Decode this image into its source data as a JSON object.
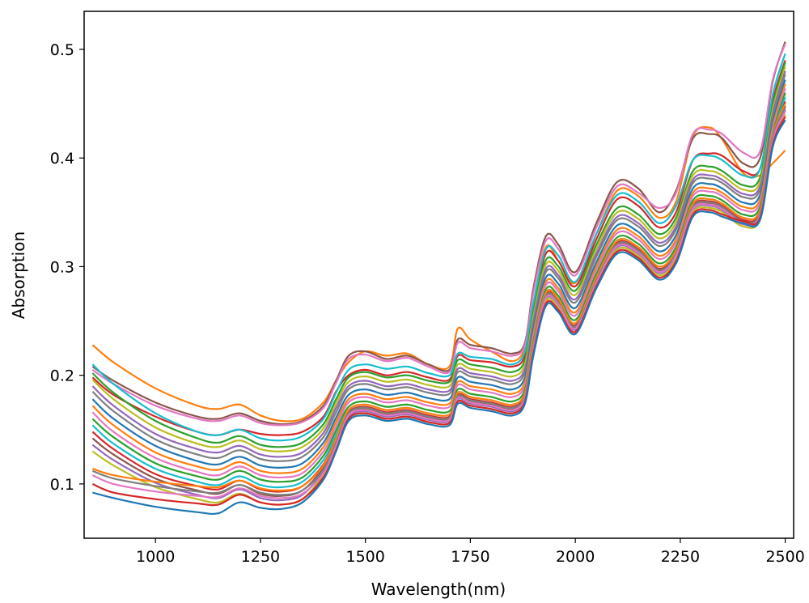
{
  "chart_data": {
    "type": "line",
    "title": "",
    "xlabel": "Wavelength(nm)",
    "ylabel": "Absorption",
    "xlim": [
      830,
      2520
    ],
    "ylim": [
      0.05,
      0.535
    ],
    "xticks": [
      {
        "value": 1000,
        "label": "1000"
      },
      {
        "value": 1250,
        "label": "1250"
      },
      {
        "value": 1500,
        "label": "1500"
      },
      {
        "value": 1750,
        "label": "1750"
      },
      {
        "value": 2000,
        "label": "2000"
      },
      {
        "value": 2250,
        "label": "2250"
      },
      {
        "value": 2500,
        "label": "2500"
      }
    ],
    "yticks": [
      {
        "value": 0.1,
        "label": "0.1"
      },
      {
        "value": 0.2,
        "label": "0.2"
      },
      {
        "value": 0.3,
        "label": "0.3"
      },
      {
        "value": 0.4,
        "label": "0.4"
      },
      {
        "value": 0.5,
        "label": "0.5"
      }
    ],
    "grid": false,
    "legend": "none",
    "x": [
      850,
      900,
      1000,
      1100,
      1150,
      1200,
      1250,
      1300,
      1350,
      1400,
      1430,
      1460,
      1500,
      1550,
      1600,
      1650,
      1700,
      1720,
      1750,
      1800,
      1850,
      1880,
      1900,
      1930,
      1960,
      2000,
      2050,
      2100,
      2150,
      2200,
      2240,
      2280,
      2320,
      2350,
      2400,
      2440,
      2470,
      2500
    ],
    "series": [
      {
        "color": "#ff7f0e",
        "values": [
          0.228,
          0.212,
          0.188,
          0.172,
          0.169,
          0.173,
          0.163,
          0.158,
          0.16,
          0.175,
          0.195,
          0.212,
          0.222,
          0.218,
          0.22,
          0.21,
          0.208,
          0.243,
          0.233,
          0.222,
          0.213,
          0.225,
          0.265,
          0.318,
          0.305,
          0.285,
          0.33,
          0.37,
          0.365,
          0.345,
          0.36,
          0.42,
          0.428,
          0.417,
          0.386,
          0.384,
          0.395,
          0.407
        ]
      },
      {
        "color": "#8c564b",
        "values": [
          0.208,
          0.195,
          0.175,
          0.162,
          0.16,
          0.165,
          0.158,
          0.155,
          0.158,
          0.172,
          0.195,
          0.218,
          0.222,
          0.215,
          0.218,
          0.21,
          0.205,
          0.233,
          0.228,
          0.225,
          0.22,
          0.23,
          0.28,
          0.328,
          0.32,
          0.295,
          0.34,
          0.378,
          0.372,
          0.35,
          0.37,
          0.418,
          0.422,
          0.418,
          0.395,
          0.4,
          0.47,
          0.507
        ]
      },
      {
        "color": "#e377c2",
        "values": [
          0.205,
          0.192,
          0.172,
          0.16,
          0.158,
          0.163,
          0.156,
          0.154,
          0.157,
          0.17,
          0.193,
          0.215,
          0.219,
          0.213,
          0.216,
          0.208,
          0.203,
          0.23,
          0.225,
          0.222,
          0.218,
          0.228,
          0.276,
          0.324,
          0.316,
          0.292,
          0.336,
          0.374,
          0.368,
          0.354,
          0.368,
          0.422,
          0.426,
          0.422,
          0.405,
          0.406,
          0.472,
          0.505
        ]
      },
      {
        "color": "#d62728",
        "values": [
          0.198,
          0.182,
          0.162,
          0.148,
          0.145,
          0.15,
          0.146,
          0.145,
          0.148,
          0.162,
          0.185,
          0.2,
          0.205,
          0.2,
          0.203,
          0.198,
          0.196,
          0.218,
          0.214,
          0.212,
          0.208,
          0.218,
          0.262,
          0.312,
          0.305,
          0.282,
          0.325,
          0.362,
          0.356,
          0.336,
          0.35,
          0.398,
          0.404,
          0.402,
          0.388,
          0.39,
          0.452,
          0.49
        ]
      },
      {
        "color": "#17becf",
        "values": [
          0.21,
          0.192,
          0.165,
          0.148,
          0.145,
          0.15,
          0.142,
          0.14,
          0.144,
          0.16,
          0.184,
          0.205,
          0.21,
          0.206,
          0.208,
          0.202,
          0.2,
          0.22,
          0.217,
          0.215,
          0.21,
          0.222,
          0.266,
          0.316,
          0.31,
          0.286,
          0.33,
          0.366,
          0.36,
          0.34,
          0.356,
          0.398,
          0.402,
          0.398,
          0.384,
          0.39,
          0.458,
          0.496
        ]
      },
      {
        "color": "#2ca02c",
        "values": [
          0.202,
          0.184,
          0.158,
          0.142,
          0.138,
          0.144,
          0.136,
          0.134,
          0.138,
          0.155,
          0.178,
          0.198,
          0.203,
          0.198,
          0.2,
          0.195,
          0.194,
          0.214,
          0.21,
          0.207,
          0.203,
          0.214,
          0.258,
          0.306,
          0.3,
          0.278,
          0.32,
          0.354,
          0.348,
          0.33,
          0.345,
          0.388,
          0.392,
          0.388,
          0.375,
          0.382,
          0.448,
          0.488
        ]
      },
      {
        "color": "#bcbd22",
        "values": [
          0.196,
          0.178,
          0.152,
          0.137,
          0.134,
          0.14,
          0.132,
          0.13,
          0.134,
          0.151,
          0.174,
          0.194,
          0.199,
          0.194,
          0.196,
          0.191,
          0.19,
          0.21,
          0.206,
          0.203,
          0.199,
          0.21,
          0.254,
          0.302,
          0.296,
          0.274,
          0.316,
          0.35,
          0.344,
          0.326,
          0.341,
          0.384,
          0.388,
          0.384,
          0.371,
          0.378,
          0.444,
          0.484
        ]
      },
      {
        "color": "#9467bd",
        "values": [
          0.19,
          0.172,
          0.146,
          0.132,
          0.129,
          0.135,
          0.127,
          0.125,
          0.129,
          0.147,
          0.17,
          0.19,
          0.195,
          0.19,
          0.192,
          0.187,
          0.186,
          0.206,
          0.202,
          0.199,
          0.195,
          0.206,
          0.25,
          0.298,
          0.292,
          0.27,
          0.312,
          0.346,
          0.34,
          0.322,
          0.337,
          0.38,
          0.384,
          0.38,
          0.367,
          0.374,
          0.44,
          0.48
        ]
      },
      {
        "color": "#7f7f7f",
        "values": [
          0.185,
          0.167,
          0.141,
          0.127,
          0.124,
          0.131,
          0.123,
          0.121,
          0.125,
          0.143,
          0.166,
          0.187,
          0.192,
          0.187,
          0.189,
          0.184,
          0.183,
          0.203,
          0.199,
          0.196,
          0.192,
          0.203,
          0.247,
          0.295,
          0.289,
          0.267,
          0.309,
          0.343,
          0.337,
          0.319,
          0.334,
          0.377,
          0.381,
          0.377,
          0.364,
          0.371,
          0.437,
          0.477
        ]
      },
      {
        "color": "#1f77b4",
        "values": [
          0.178,
          0.16,
          0.135,
          0.121,
          0.118,
          0.125,
          0.117,
          0.115,
          0.119,
          0.138,
          0.161,
          0.182,
          0.187,
          0.182,
          0.184,
          0.179,
          0.178,
          0.198,
          0.194,
          0.191,
          0.187,
          0.198,
          0.242,
          0.29,
          0.284,
          0.262,
          0.304,
          0.338,
          0.332,
          0.314,
          0.329,
          0.372,
          0.376,
          0.372,
          0.359,
          0.366,
          0.432,
          0.472
        ]
      },
      {
        "color": "#ff7f0e",
        "values": [
          0.172,
          0.154,
          0.129,
          0.116,
          0.113,
          0.12,
          0.112,
          0.11,
          0.114,
          0.134,
          0.157,
          0.178,
          0.183,
          0.178,
          0.18,
          0.175,
          0.174,
          0.194,
          0.19,
          0.187,
          0.183,
          0.194,
          0.238,
          0.286,
          0.28,
          0.258,
          0.3,
          0.334,
          0.328,
          0.31,
          0.325,
          0.368,
          0.372,
          0.368,
          0.355,
          0.362,
          0.428,
          0.468
        ]
      },
      {
        "color": "#e377c2",
        "values": [
          0.166,
          0.148,
          0.124,
          0.111,
          0.108,
          0.116,
          0.108,
          0.106,
          0.11,
          0.13,
          0.153,
          0.175,
          0.18,
          0.175,
          0.177,
          0.172,
          0.171,
          0.191,
          0.187,
          0.184,
          0.18,
          0.191,
          0.235,
          0.283,
          0.277,
          0.255,
          0.297,
          0.331,
          0.325,
          0.307,
          0.322,
          0.365,
          0.369,
          0.365,
          0.352,
          0.359,
          0.425,
          0.464
        ]
      },
      {
        "color": "#2ca02c",
        "values": [
          0.16,
          0.143,
          0.119,
          0.107,
          0.104,
          0.112,
          0.104,
          0.102,
          0.106,
          0.126,
          0.149,
          0.171,
          0.176,
          0.171,
          0.173,
          0.168,
          0.167,
          0.187,
          0.183,
          0.18,
          0.176,
          0.187,
          0.231,
          0.279,
          0.273,
          0.251,
          0.293,
          0.327,
          0.321,
          0.303,
          0.318,
          0.361,
          0.365,
          0.361,
          0.348,
          0.355,
          0.421,
          0.46
        ]
      },
      {
        "color": "#17becf",
        "values": [
          0.154,
          0.137,
          0.114,
          0.102,
          0.099,
          0.107,
          0.099,
          0.097,
          0.102,
          0.122,
          0.145,
          0.168,
          0.173,
          0.168,
          0.17,
          0.165,
          0.164,
          0.184,
          0.18,
          0.177,
          0.173,
          0.184,
          0.228,
          0.276,
          0.27,
          0.248,
          0.29,
          0.324,
          0.318,
          0.3,
          0.315,
          0.358,
          0.362,
          0.358,
          0.345,
          0.352,
          0.418,
          0.456
        ]
      },
      {
        "color": "#d62728",
        "values": [
          0.148,
          0.132,
          0.109,
          0.098,
          0.095,
          0.103,
          0.095,
          0.093,
          0.098,
          0.118,
          0.142,
          0.166,
          0.171,
          0.166,
          0.168,
          0.163,
          0.162,
          0.182,
          0.178,
          0.175,
          0.171,
          0.182,
          0.226,
          0.274,
          0.268,
          0.246,
          0.288,
          0.322,
          0.316,
          0.298,
          0.313,
          0.356,
          0.36,
          0.356,
          0.343,
          0.35,
          0.416,
          0.452
        ]
      },
      {
        "color": "#8c564b",
        "values": [
          0.142,
          0.127,
          0.105,
          0.094,
          0.091,
          0.099,
          0.091,
          0.089,
          0.094,
          0.115,
          0.139,
          0.164,
          0.169,
          0.164,
          0.166,
          0.161,
          0.16,
          0.18,
          0.176,
          0.173,
          0.169,
          0.18,
          0.224,
          0.272,
          0.266,
          0.244,
          0.286,
          0.32,
          0.314,
          0.296,
          0.311,
          0.354,
          0.358,
          0.354,
          0.341,
          0.348,
          0.414,
          0.448
        ]
      },
      {
        "color": "#9467bd",
        "values": [
          0.136,
          0.122,
          0.101,
          0.09,
          0.087,
          0.095,
          0.087,
          0.085,
          0.09,
          0.112,
          0.136,
          0.162,
          0.167,
          0.162,
          0.164,
          0.159,
          0.158,
          0.178,
          0.174,
          0.171,
          0.167,
          0.178,
          0.222,
          0.27,
          0.264,
          0.242,
          0.284,
          0.318,
          0.312,
          0.294,
          0.309,
          0.352,
          0.356,
          0.352,
          0.339,
          0.346,
          0.412,
          0.444
        ]
      },
      {
        "color": "#bcbd22",
        "values": [
          0.13,
          0.117,
          0.097,
          0.086,
          0.083,
          0.091,
          0.083,
          0.081,
          0.086,
          0.109,
          0.133,
          0.16,
          0.165,
          0.16,
          0.162,
          0.157,
          0.156,
          0.176,
          0.172,
          0.169,
          0.165,
          0.176,
          0.22,
          0.268,
          0.262,
          0.24,
          0.282,
          0.316,
          0.31,
          0.292,
          0.307,
          0.35,
          0.354,
          0.35,
          0.337,
          0.344,
          0.41,
          0.44
        ]
      },
      {
        "color": "#ff7f0e",
        "values": [
          0.114,
          0.108,
          0.102,
          0.098,
          0.097,
          0.103,
          0.096,
          0.094,
          0.098,
          0.117,
          0.142,
          0.168,
          0.173,
          0.168,
          0.17,
          0.165,
          0.164,
          0.184,
          0.18,
          0.177,
          0.173,
          0.184,
          0.228,
          0.276,
          0.27,
          0.248,
          0.29,
          0.324,
          0.318,
          0.3,
          0.315,
          0.358,
          0.362,
          0.358,
          0.345,
          0.352,
          0.42,
          0.45
        ]
      },
      {
        "color": "#7f7f7f",
        "values": [
          0.112,
          0.105,
          0.098,
          0.093,
          0.092,
          0.099,
          0.092,
          0.09,
          0.094,
          0.113,
          0.138,
          0.165,
          0.17,
          0.165,
          0.167,
          0.162,
          0.161,
          0.181,
          0.177,
          0.174,
          0.17,
          0.181,
          0.225,
          0.273,
          0.267,
          0.245,
          0.287,
          0.321,
          0.315,
          0.297,
          0.312,
          0.355,
          0.359,
          0.355,
          0.342,
          0.349,
          0.418,
          0.446
        ]
      },
      {
        "color": "#e377c2",
        "values": [
          0.108,
          0.1,
          0.093,
          0.089,
          0.088,
          0.096,
          0.089,
          0.087,
          0.091,
          0.11,
          0.135,
          0.163,
          0.168,
          0.163,
          0.165,
          0.16,
          0.159,
          0.179,
          0.175,
          0.172,
          0.168,
          0.179,
          0.223,
          0.271,
          0.265,
          0.243,
          0.285,
          0.319,
          0.313,
          0.295,
          0.31,
          0.353,
          0.357,
          0.353,
          0.34,
          0.347,
          0.415,
          0.443
        ]
      },
      {
        "color": "#d62728",
        "values": [
          0.1,
          0.092,
          0.086,
          0.082,
          0.081,
          0.09,
          0.083,
          0.081,
          0.086,
          0.106,
          0.131,
          0.16,
          0.165,
          0.16,
          0.162,
          0.157,
          0.156,
          0.176,
          0.172,
          0.169,
          0.165,
          0.176,
          0.22,
          0.266,
          0.26,
          0.24,
          0.282,
          0.314,
          0.308,
          0.29,
          0.305,
          0.348,
          0.352,
          0.348,
          0.342,
          0.345,
          0.412,
          0.438
        ]
      },
      {
        "color": "#1f77b4",
        "values": [
          0.092,
          0.087,
          0.079,
          0.074,
          0.073,
          0.083,
          0.078,
          0.077,
          0.083,
          0.104,
          0.13,
          0.158,
          0.163,
          0.158,
          0.16,
          0.155,
          0.154,
          0.174,
          0.17,
          0.167,
          0.163,
          0.174,
          0.218,
          0.264,
          0.258,
          0.238,
          0.28,
          0.312,
          0.306,
          0.288,
          0.303,
          0.346,
          0.35,
          0.346,
          0.34,
          0.343,
          0.41,
          0.435
        ]
      }
    ]
  }
}
